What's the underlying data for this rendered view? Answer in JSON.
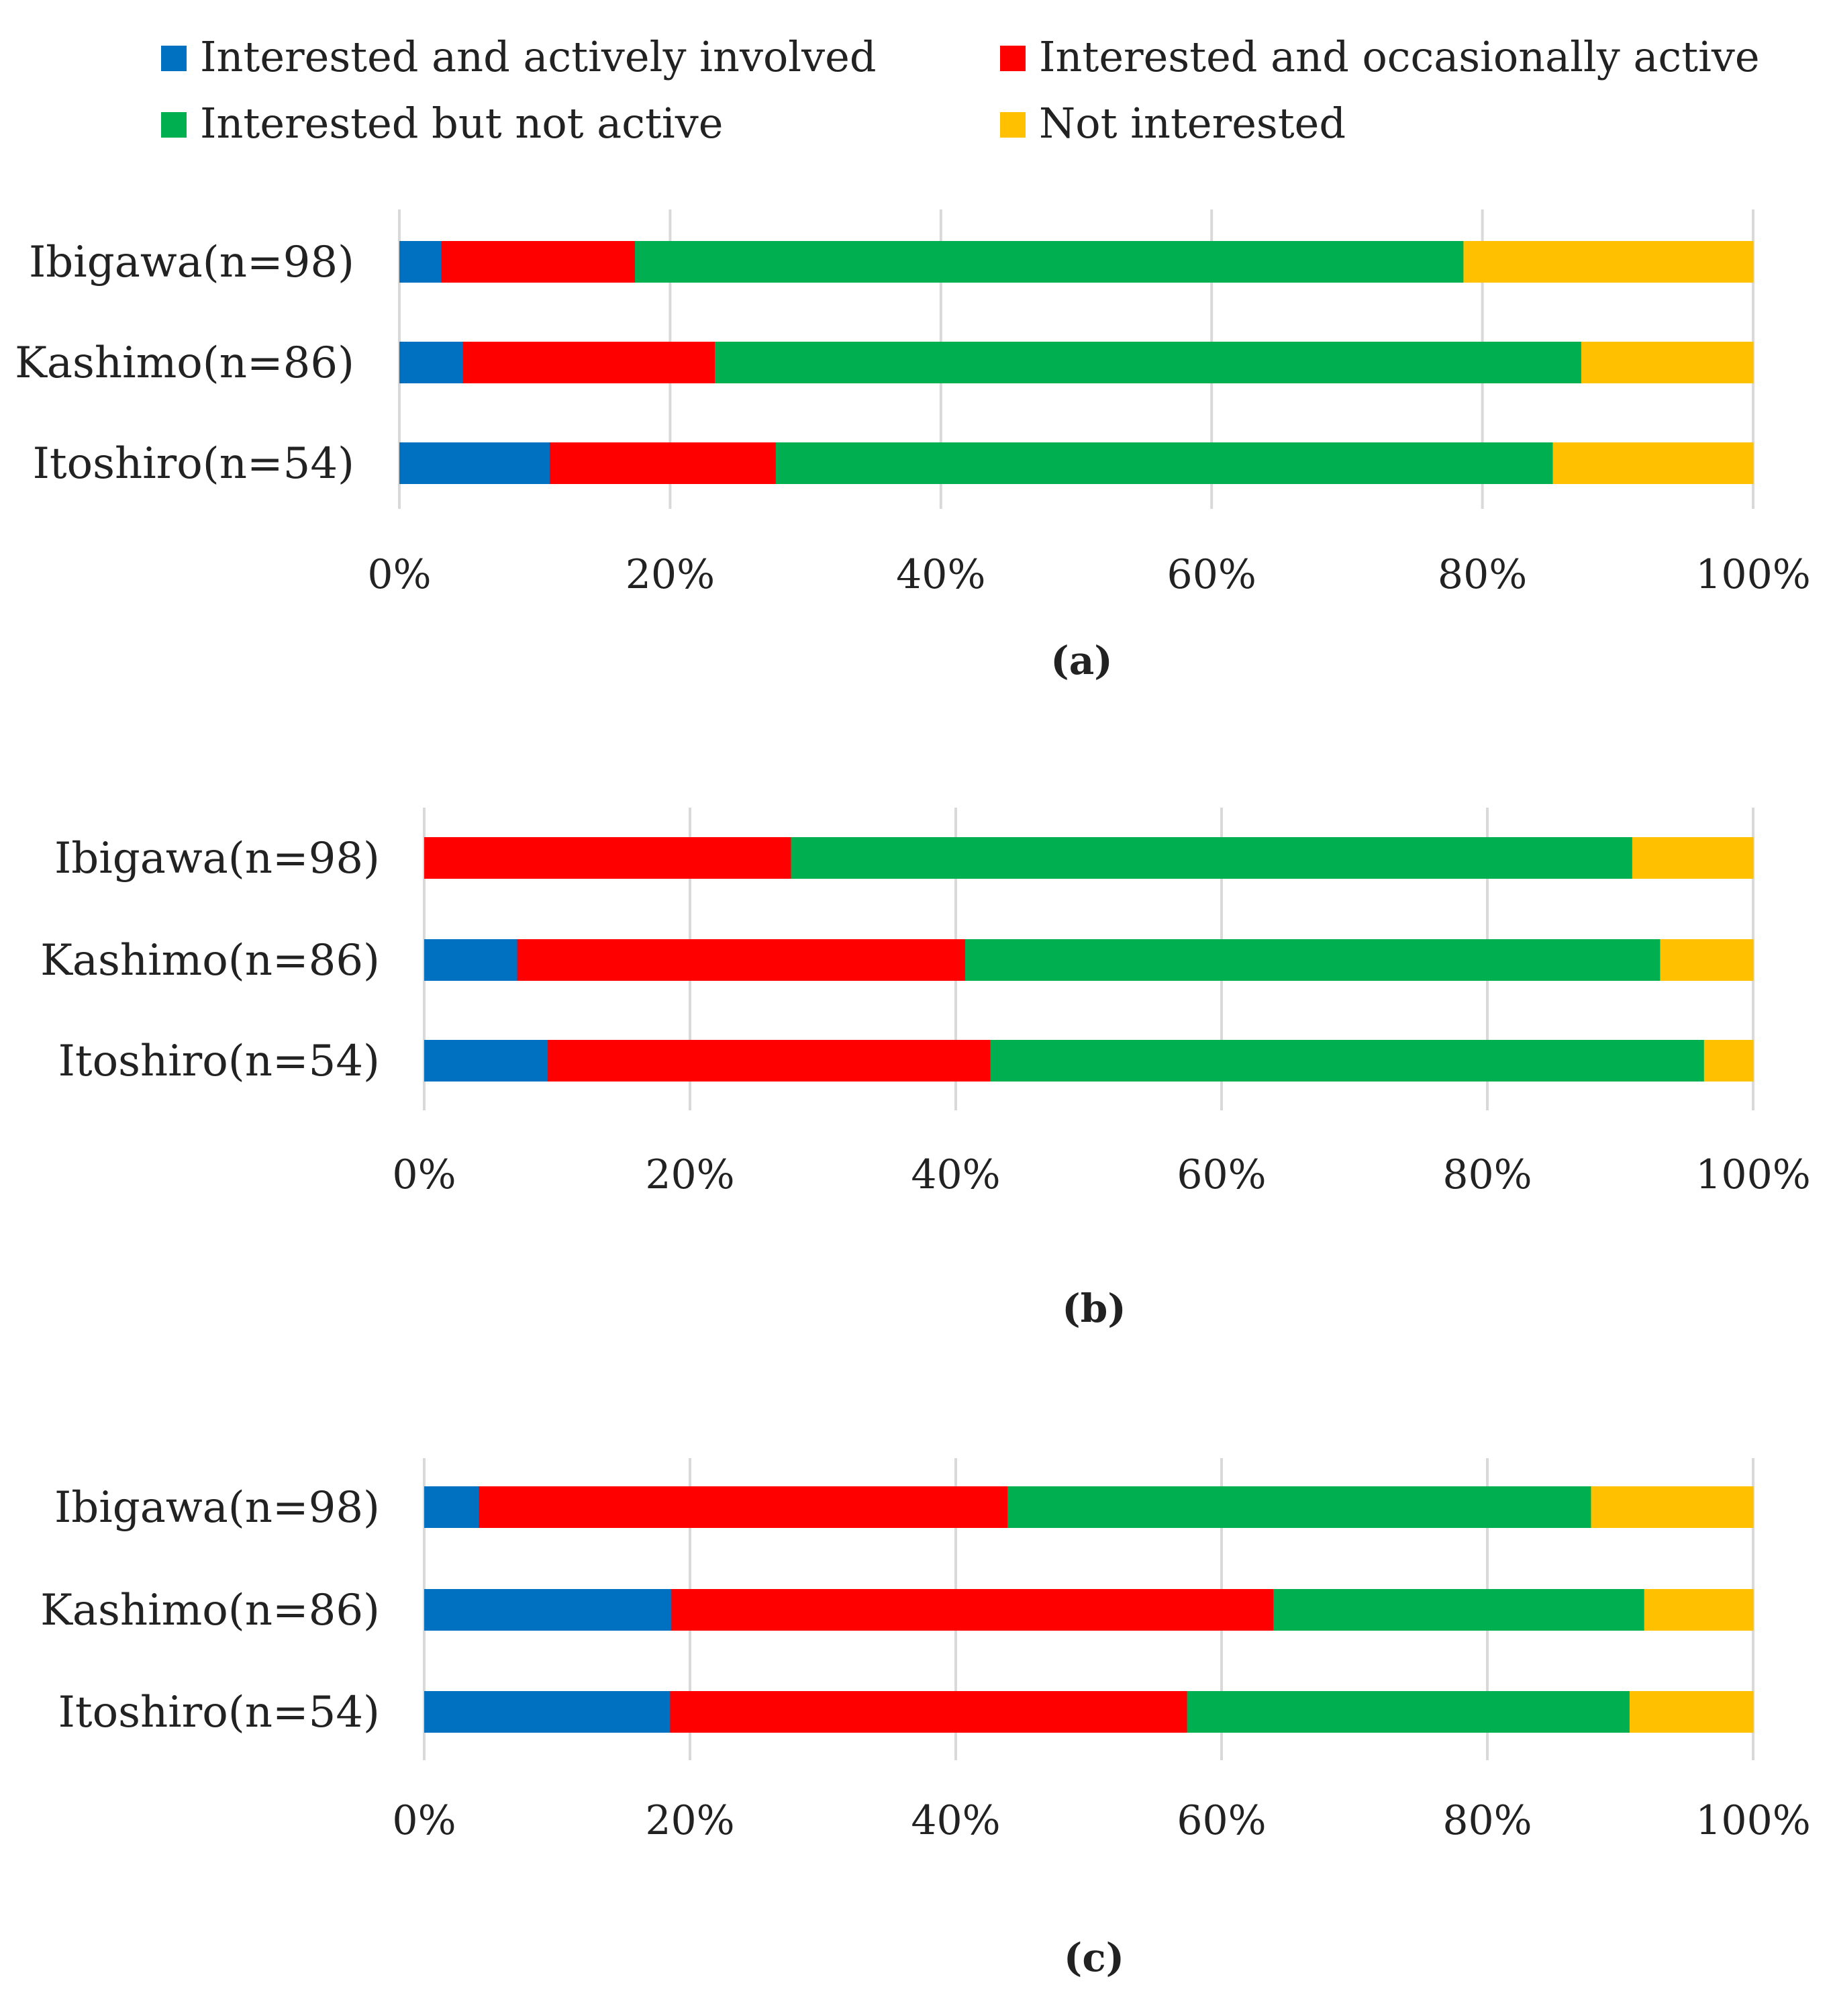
{
  "legend": [
    {
      "label": "Interested and actively involved",
      "color": "#0070C0"
    },
    {
      "label": "Interested and occasionally active",
      "color": "#FF0000"
    },
    {
      "label": "Interested but not active",
      "color": "#00B050"
    },
    {
      "label": "Not interested",
      "color": "#FFC000"
    }
  ],
  "chart_data": [
    {
      "type": "bar",
      "orientation": "horizontal",
      "stacked": true,
      "panel_label": "(a)",
      "categories": [
        "Ibigawa(n=98)",
        "Kashimo(n=86)",
        "Itoshiro(n=54)"
      ],
      "series": [
        {
          "name": "Interested and actively involved",
          "values": [
            3.1,
            4.7,
            11.1
          ]
        },
        {
          "name": "Interested and occasionally active",
          "values": [
            14.3,
            18.6,
            16.7
          ]
        },
        {
          "name": "Interested but not active",
          "values": [
            61.2,
            64.0,
            57.4
          ]
        },
        {
          "name": "Not interested",
          "values": [
            21.4,
            12.7,
            14.8
          ]
        }
      ],
      "xlim": [
        0,
        100
      ],
      "xticks": [
        "0%",
        "20%",
        "40%",
        "60%",
        "80%",
        "100%"
      ]
    },
    {
      "type": "bar",
      "orientation": "horizontal",
      "stacked": true,
      "panel_label": "(b)",
      "categories": [
        "Ibigawa(n=98)",
        "Kashimo(n=86)",
        "Itoshiro(n=54)"
      ],
      "series": [
        {
          "name": "Interested and actively involved",
          "values": [
            0,
            7.0,
            9.3
          ]
        },
        {
          "name": "Interested and occasionally active",
          "values": [
            27.6,
            33.7,
            33.3
          ]
        },
        {
          "name": "Interested but not active",
          "values": [
            63.3,
            52.3,
            53.7
          ]
        },
        {
          "name": "Not interested",
          "values": [
            9.1,
            7.0,
            3.7
          ]
        }
      ],
      "xlim": [
        0,
        100
      ],
      "xticks": [
        "0%",
        "20%",
        "40%",
        "60%",
        "80%",
        "100%"
      ]
    },
    {
      "type": "bar",
      "orientation": "horizontal",
      "stacked": true,
      "panel_label": "(c)",
      "categories": [
        "Ibigawa(n=98)",
        "Kashimo(n=86)",
        "Itoshiro(n=54)"
      ],
      "series": [
        {
          "name": "Interested and actively involved",
          "values": [
            4.1,
            18.6,
            18.5
          ]
        },
        {
          "name": "Interested and occasionally active",
          "values": [
            39.8,
            45.3,
            38.9
          ]
        },
        {
          "name": "Interested but not active",
          "values": [
            43.9,
            27.9,
            33.3
          ]
        },
        {
          "name": "Not interested",
          "values": [
            12.2,
            8.2,
            9.3
          ]
        }
      ],
      "xlim": [
        0,
        100
      ],
      "xticks": [
        "0%",
        "20%",
        "40%",
        "60%",
        "80%",
        "100%"
      ]
    }
  ]
}
